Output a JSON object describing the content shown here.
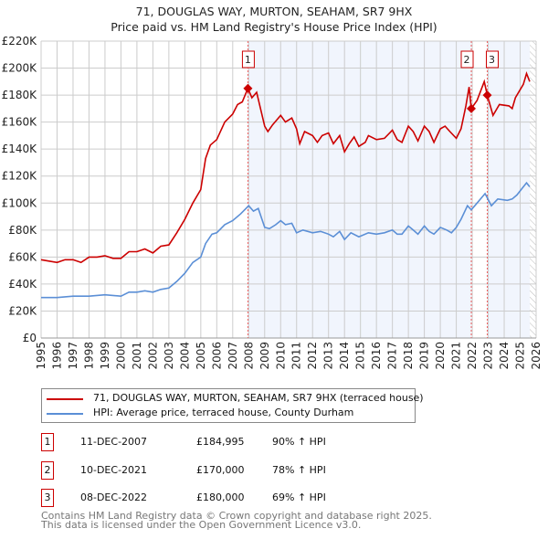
{
  "chart_data": {
    "type": "line",
    "title": "71, DOUGLAS WAY, MURTON, SEAHAM, SR7 9HX",
    "subtitle": "Price paid vs. HM Land Registry's House Price Index (HPI)",
    "xlim": [
      1995,
      2026
    ],
    "ylim": [
      0,
      220000
    ],
    "y_ticks": [
      "£0",
      "£20K",
      "£40K",
      "£60K",
      "£80K",
      "£100K",
      "£120K",
      "£140K",
      "£160K",
      "£180K",
      "£200K",
      "£220K"
    ],
    "x_ticks": [
      "1995",
      "1996",
      "1997",
      "1998",
      "1999",
      "2000",
      "2001",
      "2002",
      "2003",
      "2004",
      "2005",
      "2006",
      "2007",
      "2008",
      "2009",
      "2010",
      "2011",
      "2012",
      "2013",
      "2014",
      "2015",
      "2016",
      "2017",
      "2018",
      "2019",
      "2020",
      "2021",
      "2022",
      "2023",
      "2024",
      "2025",
      "2026"
    ],
    "grid": true,
    "series": [
      {
        "name": "71, DOUGLAS WAY, MURTON, SEAHAM, SR7 9HX (terraced house)",
        "color": "#cc0000",
        "x": [
          1995,
          1995.5,
          1996,
          1996.5,
          1997,
          1997.5,
          1998,
          1998.5,
          1999,
          1999.5,
          2000,
          2000.5,
          2001,
          2001.5,
          2002,
          2002.5,
          2003,
          2003.5,
          2004,
          2004.5,
          2005,
          2005.3,
          2005.6,
          2006,
          2006.5,
          2007,
          2007.3,
          2007.6,
          2007.95,
          2008.2,
          2008.5,
          2009,
          2009.2,
          2009.5,
          2010,
          2010.3,
          2010.7,
          2011,
          2011.2,
          2011.5,
          2012,
          2012.3,
          2012.6,
          2013,
          2013.3,
          2013.7,
          2014,
          2014.3,
          2014.6,
          2014.9,
          2015.3,
          2015.5,
          2016,
          2016.5,
          2017,
          2017.3,
          2017.6,
          2018,
          2018.3,
          2018.6,
          2019,
          2019.3,
          2019.6,
          2020,
          2020.3,
          2020.6,
          2021,
          2021.3,
          2021.6,
          2021.8,
          2021.94,
          2022.3,
          2022.75,
          2022.94,
          2023.3,
          2023.7,
          2024.3,
          2024.5,
          2024.7,
          2025.2,
          2025.4,
          2025.6
        ],
        "y": [
          58000,
          57000,
          56000,
          58000,
          58000,
          56000,
          60000,
          60000,
          61000,
          59000,
          59000,
          64000,
          64000,
          66000,
          63000,
          68000,
          69000,
          78000,
          88000,
          100000,
          110000,
          133000,
          143000,
          147000,
          160000,
          166000,
          173000,
          175000,
          184995,
          178000,
          182000,
          157000,
          153000,
          158000,
          165000,
          160000,
          163000,
          155000,
          144000,
          153000,
          150000,
          145000,
          150000,
          152000,
          144000,
          150000,
          138000,
          144000,
          149000,
          142000,
          145000,
          150000,
          147000,
          148000,
          154000,
          147000,
          145000,
          157000,
          153000,
          146000,
          157000,
          153000,
          145000,
          155000,
          157000,
          153000,
          148000,
          155000,
          172000,
          186000,
          170000,
          176000,
          190000,
          180000,
          165000,
          173000,
          172000,
          170000,
          178000,
          188000,
          196000,
          190000
        ]
      },
      {
        "name": "HPI: Average price, terraced house, County Durham",
        "color": "#5b8fd6",
        "x": [
          1995,
          1996,
          1997,
          1998,
          1999,
          2000,
          2000.5,
          2001,
          2001.5,
          2002,
          2002.5,
          2003,
          2003.5,
          2004,
          2004.5,
          2005,
          2005.3,
          2005.7,
          2006,
          2006.5,
          2007,
          2007.5,
          2008,
          2008.3,
          2008.6,
          2009,
          2009.3,
          2009.7,
          2010,
          2010.3,
          2010.7,
          2011,
          2011.4,
          2012,
          2012.5,
          2013,
          2013.3,
          2013.7,
          2014,
          2014.4,
          2014.9,
          2015.5,
          2016,
          2016.5,
          2017,
          2017.3,
          2017.6,
          2018,
          2018.3,
          2018.6,
          2019,
          2019.3,
          2019.6,
          2020,
          2020.4,
          2020.7,
          2021,
          2021.3,
          2021.7,
          2021.94,
          2022.3,
          2022.8,
          2023.2,
          2023.6,
          2024.2,
          2024.5,
          2024.8,
          2025.2,
          2025.4,
          2025.6
        ],
        "y": [
          30000,
          30000,
          31000,
          31000,
          32000,
          31000,
          34000,
          34000,
          35000,
          34000,
          36000,
          37000,
          42000,
          48000,
          56000,
          60000,
          70000,
          77000,
          78000,
          84000,
          87000,
          92000,
          98000,
          94000,
          96000,
          82000,
          81000,
          84000,
          87000,
          84000,
          85000,
          78000,
          80000,
          78000,
          79000,
          77000,
          75000,
          79000,
          73000,
          78000,
          75000,
          78000,
          77000,
          78000,
          80000,
          77000,
          77000,
          83000,
          80000,
          77000,
          83000,
          79000,
          77000,
          82000,
          80000,
          78000,
          82000,
          88000,
          98000,
          95000,
          100000,
          107000,
          98000,
          103000,
          102000,
          103000,
          106000,
          112000,
          115000,
          112000
        ]
      }
    ],
    "sales": [
      {
        "label": "1",
        "x": 2007.95,
        "price": 184995,
        "date": "11-DEC-2007",
        "price_text": "£184,995",
        "hpi_text": "90% ↑ HPI"
      },
      {
        "label": "2",
        "x": 2021.94,
        "price": 170000,
        "date": "10-DEC-2021",
        "price_text": "£170,000",
        "hpi_text": "78% ↑ HPI"
      },
      {
        "label": "3",
        "x": 2022.94,
        "price": 180000,
        "date": "08-DEC-2022",
        "price_text": "£180,000",
        "hpi_text": "69% ↑ HPI"
      }
    ],
    "data_end": 2025.6,
    "legend_placement": "bottom"
  },
  "legend": {
    "items": [
      "71, DOUGLAS WAY, MURTON, SEAHAM, SR7 9HX (terraced house)",
      "HPI: Average price, terraced house, County Durham"
    ]
  },
  "footer": {
    "line1": "Contains HM Land Registry data © Crown copyright and database right 2025.",
    "line2": "This data is licensed under the Open Government Licence v3.0."
  }
}
